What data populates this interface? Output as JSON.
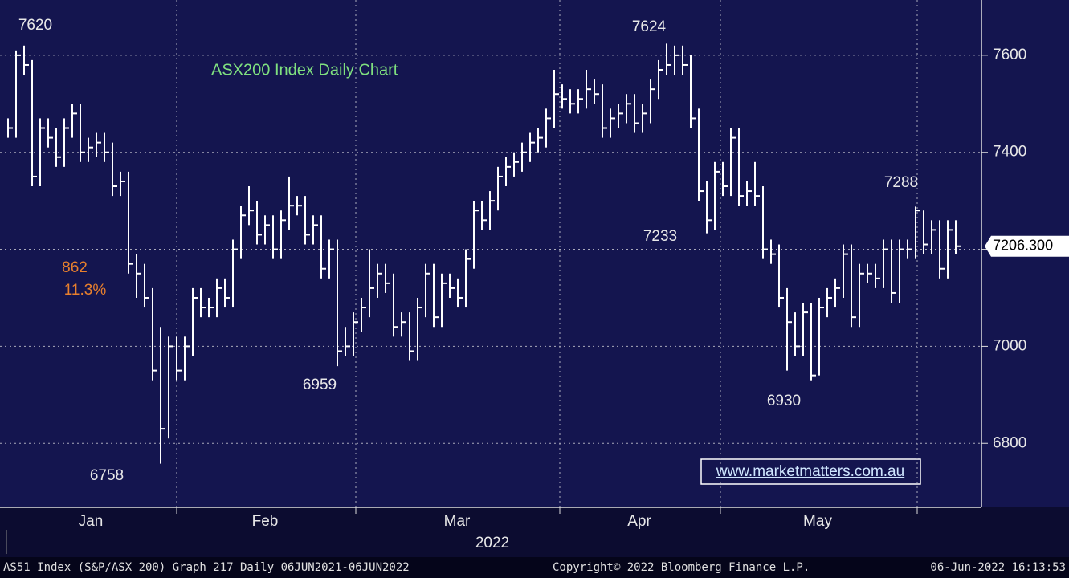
{
  "chart_data": {
    "type": "ohlc",
    "title": "ASX200 Index Daily Chart",
    "close": [
      7450,
      7600,
      7580,
      7350,
      7450,
      7430,
      7390,
      7450,
      7480,
      7400,
      7410,
      7420,
      7400,
      7330,
      7340,
      7170,
      7150,
      7100,
      6950,
      6830,
      7000,
      6950,
      7000,
      7100,
      7080,
      7080,
      7120,
      7100,
      7200,
      7270,
      7280,
      7230,
      7250,
      7200,
      7260,
      7290,
      7290,
      7230,
      7250,
      7160,
      7200,
      6990,
      7000,
      7050,
      7080,
      7120,
      7150,
      7130,
      7040,
      7050,
      6990,
      7080,
      7150,
      7060,
      7130,
      7120,
      7100,
      7180,
      7280,
      7260,
      7300,
      7350,
      7370,
      7380,
      7400,
      7420,
      7430,
      7470,
      7520,
      7510,
      7500,
      7510,
      7530,
      7520,
      7450,
      7470,
      7480,
      7500,
      7460,
      7480,
      7530,
      7570,
      7580,
      7600,
      7580,
      7470,
      7320,
      7260,
      7360,
      7330,
      7430,
      7310,
      7320,
      7310,
      7200,
      7190,
      7100,
      7050,
      7000,
      7070,
      6940,
      7080,
      7100,
      7120,
      7190,
      7060,
      7150,
      7150,
      7140,
      7200,
      7110,
      7200,
      7200,
      7280,
      7210,
      7240,
      7160,
      7240,
      7206.3
    ],
    "high": [
      7470,
      7610,
      7620,
      7590,
      7470,
      7470,
      7450,
      7470,
      7500,
      7500,
      7430,
      7440,
      7440,
      7420,
      7360,
      7360,
      7190,
      7170,
      7120,
      7040,
      7020,
      7020,
      7020,
      7120,
      7120,
      7100,
      7140,
      7140,
      7220,
      7290,
      7330,
      7300,
      7270,
      7270,
      7280,
      7350,
      7310,
      7310,
      7270,
      7270,
      7220,
      7220,
      7040,
      7070,
      7100,
      7200,
      7170,
      7170,
      7150,
      7070,
      7070,
      7100,
      7170,
      7170,
      7150,
      7150,
      7140,
      7200,
      7300,
      7300,
      7320,
      7370,
      7390,
      7400,
      7420,
      7440,
      7450,
      7490,
      7570,
      7540,
      7530,
      7530,
      7570,
      7550,
      7540,
      7490,
      7500,
      7520,
      7520,
      7500,
      7550,
      7590,
      7624,
      7620,
      7620,
      7600,
      7490,
      7340,
      7380,
      7380,
      7450,
      7450,
      7340,
      7380,
      7330,
      7220,
      7210,
      7120,
      7070,
      7090,
      7090,
      7100,
      7120,
      7140,
      7210,
      7210,
      7170,
      7170,
      7170,
      7220,
      7220,
      7220,
      7220,
      7288,
      7280,
      7260,
      7260,
      7260,
      7260
    ],
    "low": [
      7430,
      7430,
      7560,
      7330,
      7330,
      7410,
      7370,
      7370,
      7430,
      7380,
      7380,
      7390,
      7380,
      7310,
      7310,
      7150,
      7100,
      7080,
      6930,
      6758,
      6810,
      6930,
      6930,
      6980,
      7060,
      7060,
      7060,
      7080,
      7080,
      7180,
      7250,
      7210,
      7210,
      7180,
      7180,
      7240,
      7270,
      7210,
      7210,
      7140,
      7140,
      6959,
      6980,
      6980,
      7030,
      7060,
      7100,
      7110,
      7020,
      7020,
      6970,
      6970,
      7060,
      7040,
      7040,
      7100,
      7080,
      7080,
      7160,
      7240,
      7240,
      7280,
      7330,
      7350,
      7360,
      7380,
      7400,
      7410,
      7450,
      7490,
      7480,
      7480,
      7490,
      7500,
      7430,
      7430,
      7450,
      7460,
      7440,
      7440,
      7460,
      7510,
      7560,
      7560,
      7560,
      7450,
      7300,
      7233,
      7240,
      7310,
      7310,
      7290,
      7290,
      7290,
      7180,
      7170,
      7080,
      6950,
      6980,
      6980,
      6930,
      6940,
      7060,
      7080,
      7100,
      7040,
      7040,
      7130,
      7120,
      7120,
      7090,
      7090,
      7180,
      7180,
      7190,
      7190,
      7140,
      7140,
      7190
    ],
    "last_label": "7206.300",
    "ylim": [
      6668,
      7714
    ],
    "yticks": [
      6800,
      7000,
      7200,
      7400,
      7600
    ],
    "grid": true,
    "color": "#ffffff",
    "months": [
      "Jan",
      "Feb",
      "Mar",
      "Apr",
      "May"
    ],
    "year": "2022",
    "annotations": [
      "7620",
      "7624",
      "6758",
      "6959",
      "7233",
      "6930",
      "7288",
      "862",
      "11.3%"
    ],
    "watermark": "www.marketmatters.com.au",
    "footer": [
      "AS51 Index (S&P/ASX 200) Graph 217  Daily 06JUN2021-06JUN2022",
      "Copyright© 2022 Bloomberg Finance L.P.",
      "06-Jun-2022 16:13:53"
    ]
  }
}
